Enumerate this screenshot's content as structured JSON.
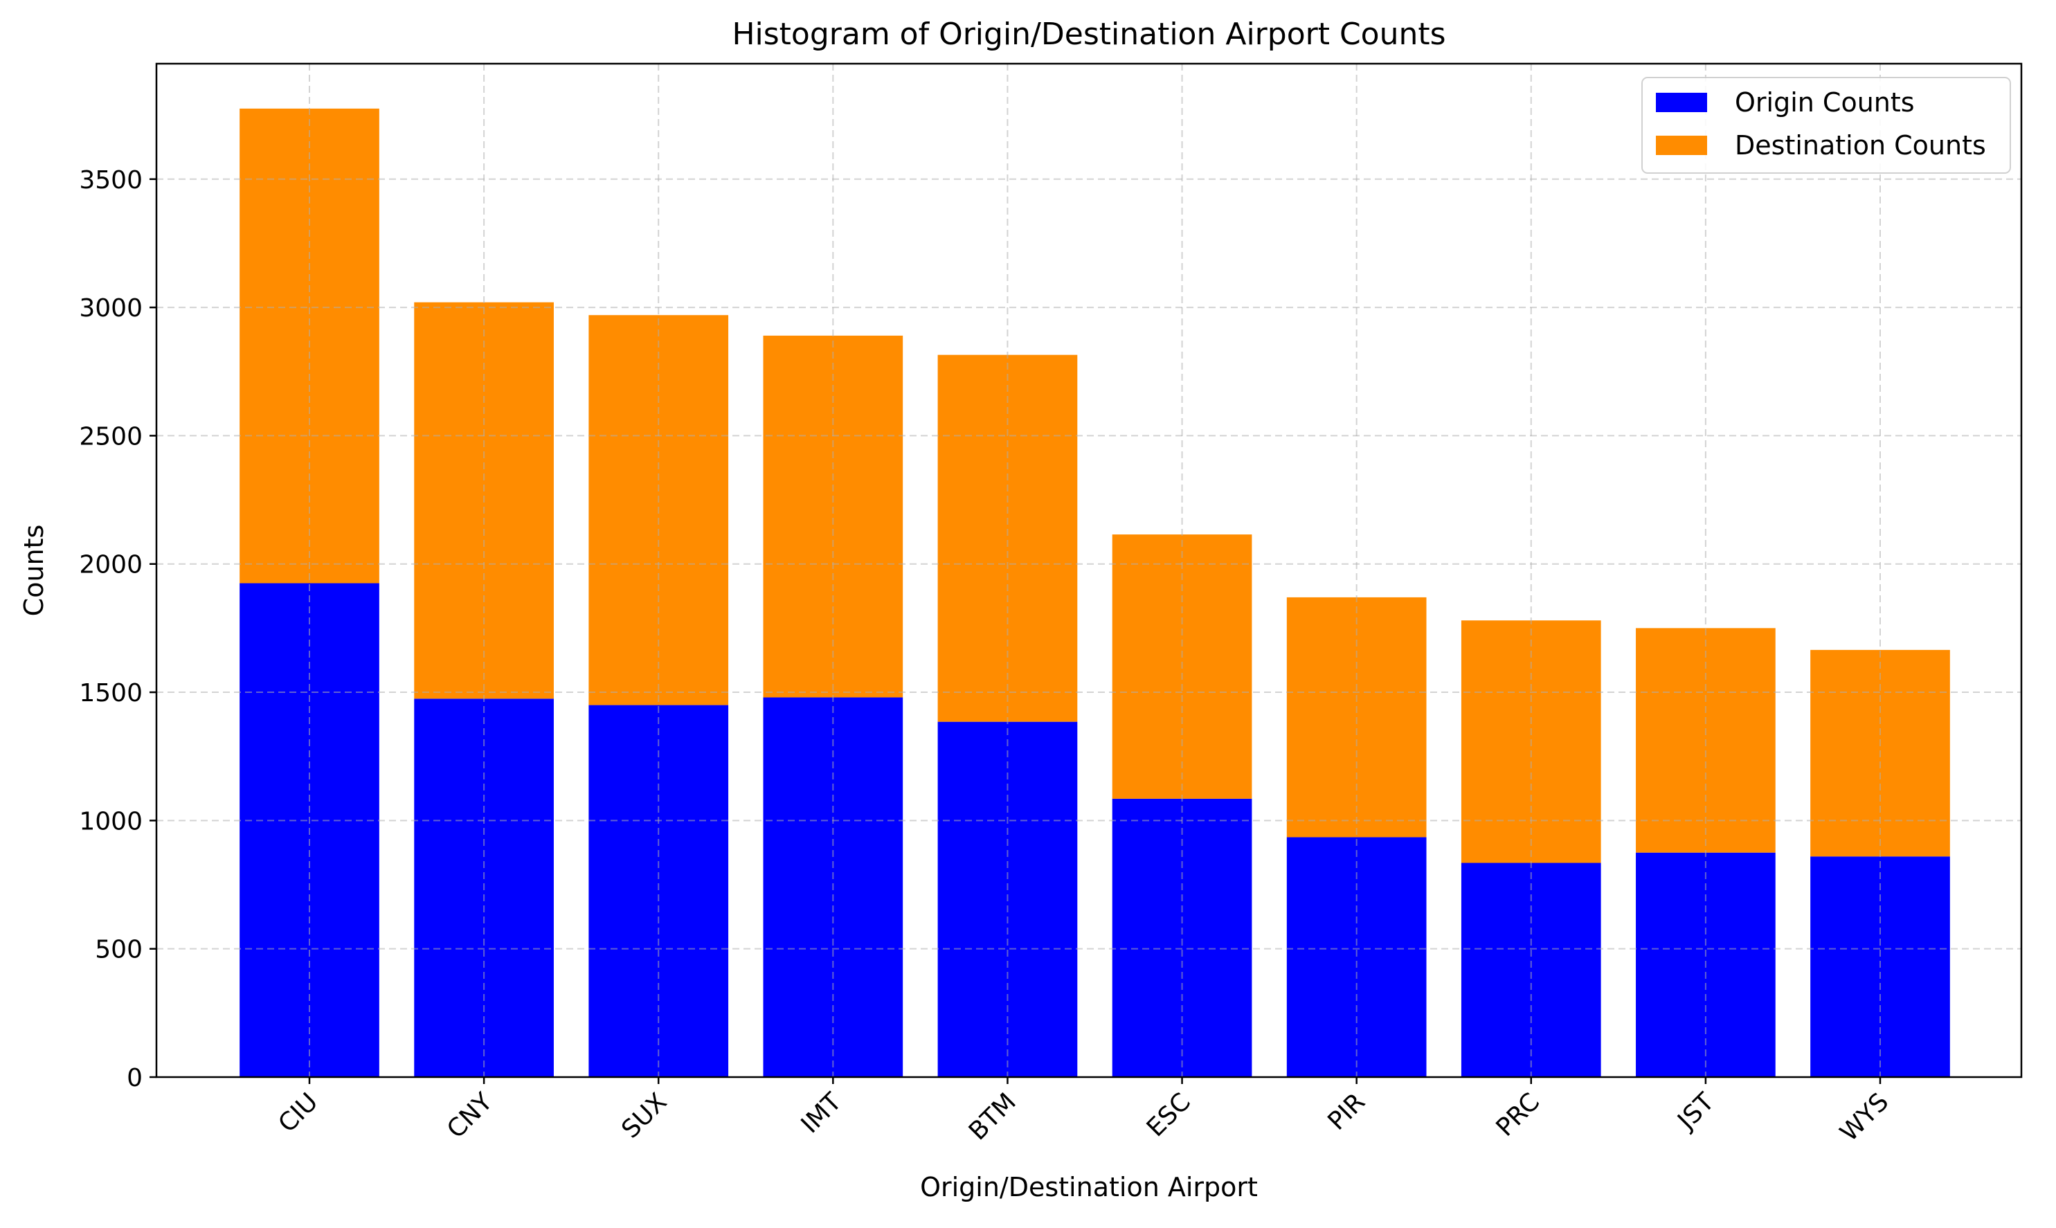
{
  "chart_data": {
    "type": "bar",
    "stacked": true,
    "title": "Histogram of Origin/Destination Airport Counts",
    "xlabel": "Origin/Destination Airport",
    "ylabel": "Counts",
    "categories": [
      "CIU",
      "CNY",
      "SUX",
      "IMT",
      "BTM",
      "ESC",
      "PIR",
      "PRC",
      "JST",
      "WYS"
    ],
    "series": [
      {
        "name": "Origin Counts",
        "color": "#0000ff",
        "values": [
          1925,
          1475,
          1450,
          1480,
          1385,
          1085,
          935,
          835,
          875,
          860
        ]
      },
      {
        "name": "Destination Counts",
        "color": "#ff8c00",
        "values": [
          1850,
          1545,
          1520,
          1410,
          1430,
          1030,
          935,
          945,
          875,
          805
        ]
      }
    ],
    "ylim": [
      0,
      3950
    ],
    "yticks": [
      0,
      500,
      1000,
      1500,
      2000,
      2500,
      3000,
      3500
    ],
    "grid": true,
    "legend_position": "top-right",
    "xtick_rotation": 45
  }
}
